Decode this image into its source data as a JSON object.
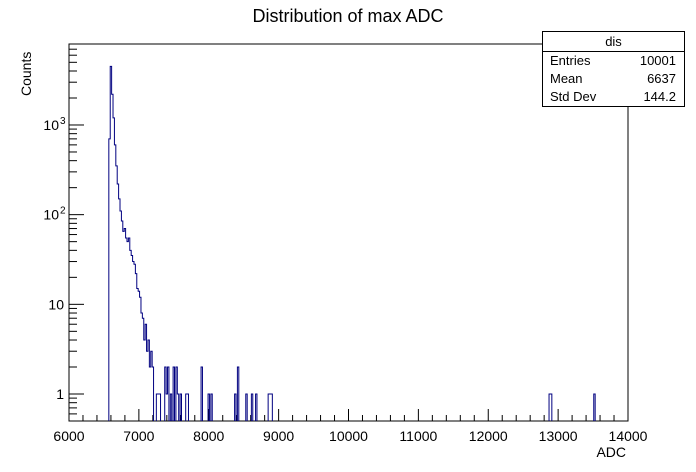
{
  "chart_data": {
    "type": "histogram",
    "title": "Distribution of max ADC",
    "xlabel": "ADC",
    "ylabel": "Counts",
    "xlim": [
      6000,
      14000
    ],
    "ylim": [
      0.5,
      8000
    ],
    "ylog": true,
    "line_color": "#000080",
    "x_ticks": [
      6000,
      7000,
      8000,
      9000,
      10000,
      11000,
      12000,
      13000,
      14000
    ],
    "y_ticks": [
      {
        "value": 1,
        "label": "1"
      },
      {
        "value": 10,
        "label": "10"
      },
      {
        "value": 100,
        "label": "10",
        "exp": "2"
      },
      {
        "value": 1000,
        "label": "10",
        "exp": "3"
      }
    ],
    "stats": {
      "name": "dis",
      "rows": [
        {
          "label": "Entries",
          "value": "10001"
        },
        {
          "label": "Mean",
          "value": "6637"
        },
        {
          "label": "Std Dev",
          "value": "144.2"
        }
      ]
    },
    "bins": [
      [
        6570,
        6590,
        700
      ],
      [
        6590,
        6610,
        4500
      ],
      [
        6610,
        6630,
        2200
      ],
      [
        6630,
        6650,
        1200
      ],
      [
        6650,
        6670,
        600
      ],
      [
        6670,
        6690,
        350
      ],
      [
        6690,
        6710,
        220
      ],
      [
        6710,
        6730,
        150
      ],
      [
        6730,
        6750,
        110
      ],
      [
        6750,
        6770,
        85
      ],
      [
        6770,
        6790,
        65
      ],
      [
        6790,
        6810,
        70
      ],
      [
        6810,
        6830,
        55
      ],
      [
        6830,
        6850,
        50
      ],
      [
        6850,
        6870,
        55
      ],
      [
        6870,
        6890,
        40
      ],
      [
        6890,
        6910,
        35
      ],
      [
        6910,
        6930,
        30
      ],
      [
        6930,
        6950,
        28
      ],
      [
        6950,
        6970,
        22
      ],
      [
        6970,
        6990,
        15
      ],
      [
        6990,
        7010,
        14
      ],
      [
        7010,
        7030,
        12
      ],
      [
        7030,
        7050,
        8
      ],
      [
        7050,
        7070,
        7
      ],
      [
        7070,
        7090,
        4
      ],
      [
        7090,
        7110,
        6
      ],
      [
        7110,
        7130,
        3
      ],
      [
        7130,
        7150,
        4
      ],
      [
        7150,
        7170,
        2
      ],
      [
        7170,
        7190,
        3
      ],
      [
        7190,
        7210,
        2
      ],
      [
        7250,
        7270,
        1
      ],
      [
        7270,
        7290,
        1
      ],
      [
        7290,
        7310,
        1
      ],
      [
        7370,
        7390,
        2
      ],
      [
        7390,
        7410,
        1
      ],
      [
        7410,
        7430,
        2
      ],
      [
        7450,
        7470,
        1
      ],
      [
        7490,
        7510,
        2
      ],
      [
        7530,
        7550,
        2
      ],
      [
        7550,
        7570,
        1
      ],
      [
        7590,
        7610,
        1
      ],
      [
        7670,
        7690,
        1
      ],
      [
        7690,
        7710,
        1
      ],
      [
        7890,
        7910,
        2
      ],
      [
        7990,
        8010,
        1
      ],
      [
        8030,
        8050,
        1
      ],
      [
        8370,
        8390,
        1
      ],
      [
        8410,
        8430,
        2
      ],
      [
        8530,
        8550,
        1
      ],
      [
        8610,
        8630,
        1
      ],
      [
        8670,
        8690,
        1
      ],
      [
        8850,
        8870,
        1
      ],
      [
        8870,
        8890,
        1
      ],
      [
        8890,
        8910,
        1
      ],
      [
        12870,
        12890,
        1
      ],
      [
        12890,
        12910,
        1
      ],
      [
        13510,
        13530,
        1
      ]
    ]
  }
}
